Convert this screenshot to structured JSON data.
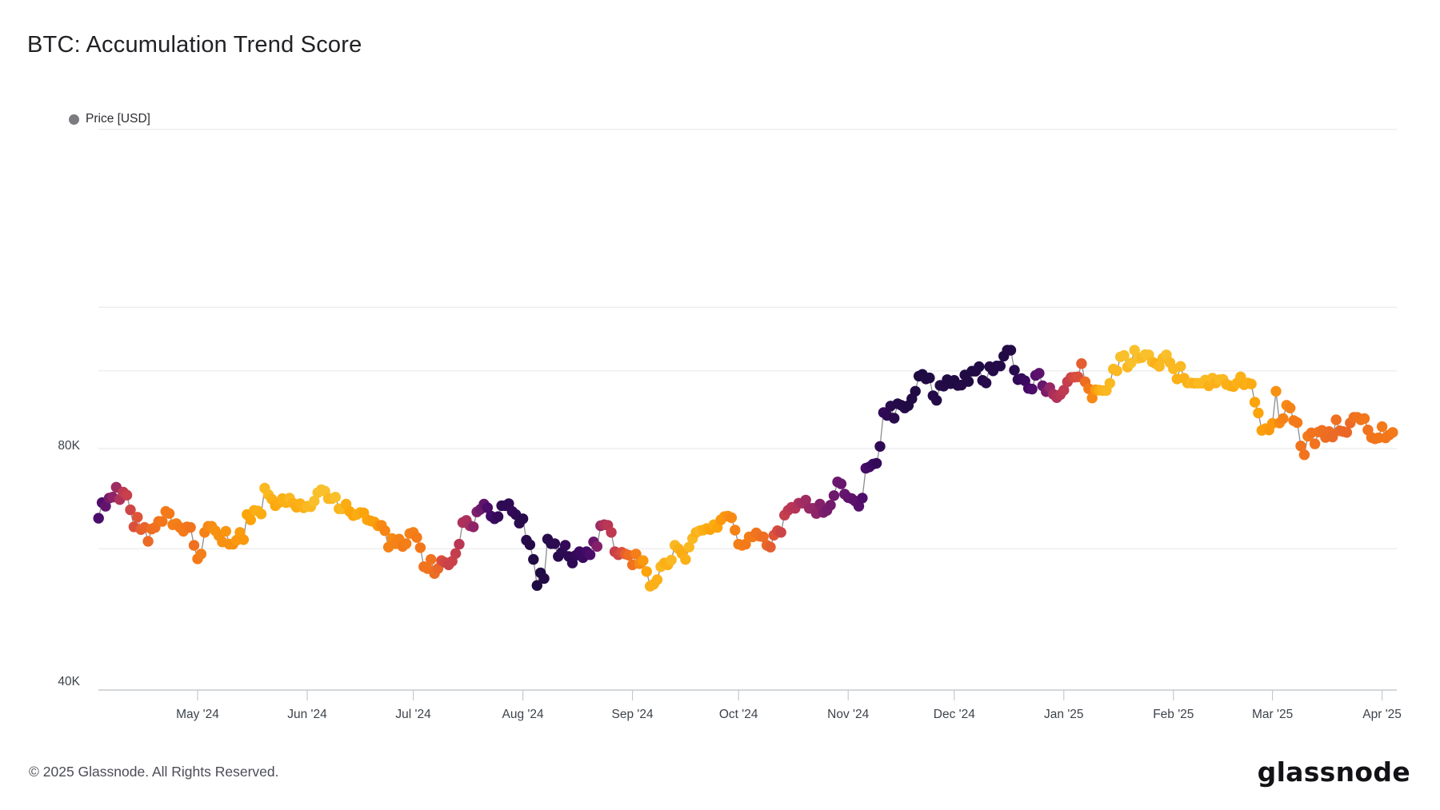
{
  "page": {
    "title": "BTC: Accumulation Trend Score"
  },
  "legend": {
    "items": [
      {
        "label": "Price [USD]",
        "dot_color": "#7b7b80"
      }
    ]
  },
  "footer": {
    "copyright": "© 2025 Glassnode. All Rights Reserved."
  },
  "brand": {
    "logo_text": "glassnode"
  },
  "colors": {
    "grid": "#ededee",
    "axis_line": "#c6cacd",
    "tick_mark": "#c6cacd",
    "x_tick_label": "#3d434b",
    "y_tick_label": "#3d434b",
    "connector_line": "#8d8d92",
    "title": "#222226",
    "footer_text": "#4b4b55",
    "logo_text": "#121217",
    "legend_text": "#2c2c31"
  },
  "chart_data": {
    "type": "scatter",
    "title": "BTC: Accumulation Trend Score",
    "series_name": "Price [USD]",
    "color_encoding": "Accumulation Trend Score per day: ~1 (accumulation) = dark navy/purple, ~0 (distribution) = yellow",
    "colormap": "inferno",
    "colormap_anchors": [
      [
        0.0,
        "#000004"
      ],
      [
        0.1,
        "#160b39"
      ],
      [
        0.2,
        "#420a68"
      ],
      [
        0.3,
        "#6a176e"
      ],
      [
        0.4,
        "#932667"
      ],
      [
        0.5,
        "#bc3754"
      ],
      [
        0.6,
        "#dd513a"
      ],
      [
        0.7,
        "#f3771a"
      ],
      [
        0.8,
        "#fca50a"
      ],
      [
        0.9,
        "#f6d746"
      ],
      [
        1.0,
        "#fcffa4"
      ]
    ],
    "y_scale": "log",
    "y_unit": "USD",
    "y_tick_labels": [
      {
        "label": "80K",
        "value_k": 80
      },
      {
        "label": "40K",
        "value_k": 40
      }
    ],
    "y_gridline_values_k": [
      200,
      120,
      100,
      80,
      60
    ],
    "x_tick_labels": [
      {
        "label": "May '24",
        "day_index": 28
      },
      {
        "label": "Jun '24",
        "day_index": 59
      },
      {
        "label": "Jul '24",
        "day_index": 89
      },
      {
        "label": "Aug '24",
        "day_index": 120
      },
      {
        "label": "Sep '24",
        "day_index": 151
      },
      {
        "label": "Oct '24",
        "day_index": 181
      },
      {
        "label": "Nov '24",
        "day_index": 212
      },
      {
        "label": "Dec '24",
        "day_index": 242
      },
      {
        "label": "Jan '25",
        "day_index": 273
      },
      {
        "label": "Feb '25",
        "day_index": 304
      },
      {
        "label": "Mar '25",
        "day_index": 332
      },
      {
        "label": "Apr '25",
        "day_index": 363
      }
    ],
    "start_date": "2024-04-03",
    "frequency": "daily",
    "price_usd_k": [
      65.5,
      68.5,
      67.8,
      69.4,
      69.6,
      71.6,
      69.1,
      70.6,
      70.0,
      67.1,
      63.9,
      65.7,
      63.4,
      63.8,
      61.3,
      63.5,
      63.8,
      64.9,
      64.9,
      66.8,
      66.4,
      64.3,
      64.5,
      63.8,
      63.1,
      63.9,
      63.8,
      60.6,
      58.3,
      59.1,
      62.9,
      64.0,
      64.0,
      63.2,
      62.3,
      61.2,
      63.1,
      60.8,
      60.8,
      61.5,
      62.9,
      61.6,
      66.2,
      65.2,
      67.0,
      66.9,
      66.3,
      71.4,
      70.1,
      69.2,
      67.9,
      68.5,
      69.3,
      68.5,
      69.4,
      68.4,
      67.6,
      68.3,
      67.5,
      67.8,
      67.7,
      68.8,
      70.5,
      71.1,
      70.8,
      69.3,
      69.3,
      69.6,
      67.3,
      67.3,
      68.2,
      66.8,
      66.0,
      66.2,
      66.6,
      66.5,
      65.2,
      65.0,
      64.8,
      64.1,
      64.2,
      63.2,
      60.3,
      61.8,
      60.9,
      61.7,
      60.4,
      60.9,
      62.7,
      62.9,
      62.0,
      60.2,
      57.0,
      56.7,
      58.2,
      55.9,
      56.7,
      58.0,
      57.7,
      57.3,
      57.9,
      59.2,
      60.8,
      64.7,
      65.1,
      64.1,
      63.9,
      66.7,
      67.2,
      68.2,
      67.5,
      65.9,
      65.4,
      65.8,
      67.9,
      67.9,
      68.3,
      66.8,
      66.2,
      64.6,
      65.4,
      61.5,
      60.7,
      58.2,
      54.0,
      56.0,
      55.1,
      61.7,
      60.9,
      60.9,
      58.7,
      59.4,
      60.6,
      58.7,
      57.6,
      58.9,
      59.5,
      58.5,
      59.5,
      59.0,
      61.2,
      60.4,
      64.1,
      64.3,
      64.2,
      62.9,
      59.5,
      59.0,
      59.4,
      59.1,
      58.9,
      57.3,
      59.1,
      57.5,
      58.0,
      56.2,
      53.9,
      54.2,
      54.9,
      57.0,
      57.6,
      57.3,
      58.1,
      60.6,
      60.0,
      59.2,
      58.2,
      60.3,
      61.8,
      62.9,
      63.2,
      63.3,
      63.6,
      63.4,
      64.3,
      63.8,
      65.2,
      65.8,
      65.9,
      65.6,
      63.3,
      60.8,
      60.6,
      60.8,
      62.1,
      62.1,
      62.8,
      62.2,
      62.1,
      60.6,
      60.3,
      62.4,
      63.2,
      62.9,
      66.1,
      67.0,
      67.6,
      67.4,
      68.4,
      68.4,
      69.0,
      67.4,
      67.4,
      66.4,
      68.2,
      66.6,
      67.0,
      68.0,
      69.9,
      72.7,
      72.3,
      70.2,
      69.5,
      69.3,
      68.8,
      67.8,
      69.4,
      75.6,
      75.9,
      76.5,
      76.7,
      80.5,
      88.7,
      88.0,
      90.4,
      87.3,
      91.0,
      90.6,
      89.9,
      90.5,
      92.3,
      94.3,
      98.5,
      99.0,
      97.7,
      98.0,
      93.1,
      91.9,
      95.9,
      95.7,
      97.5,
      96.4,
      97.3,
      95.9,
      96.0,
      98.8,
      97.0,
      99.9,
      99.9,
      101.2,
      97.3,
      96.6,
      101.2,
      100.0,
      101.4,
      101.4,
      104.3,
      106.1,
      106.1,
      100.2,
      97.5,
      97.8,
      97.2,
      95.1,
      94.9,
      98.7,
      99.3,
      95.8,
      94.2,
      95.3,
      93.5,
      92.6,
      93.4,
      94.6,
      96.9,
      98.1,
      98.2,
      98.3,
      102.1,
      96.9,
      95.0,
      92.5,
      94.7,
      94.6,
      94.5,
      94.5,
      96.5,
      100.5,
      100.0,
      104.1,
      104.5,
      101.1,
      102.3,
      106.1,
      103.7,
      103.9,
      104.8,
      104.7,
      102.6,
      102.1,
      101.3,
      103.7,
      104.7,
      102.4,
      100.6,
      97.7,
      101.3,
      97.9,
      96.6,
      96.6,
      96.5,
      96.5,
      96.5,
      97.4,
      95.8,
      97.9,
      96.6,
      97.5,
      97.6,
      96.2,
      95.8,
      95.6,
      96.6,
      98.3,
      96.1,
      96.6,
      96.3,
      91.4,
      88.6,
      84.3,
      84.7,
      84.4,
      86.0,
      94.3,
      86.1,
      87.2,
      90.6,
      89.9,
      86.7,
      86.2,
      80.6,
      78.6,
      82.9,
      83.7,
      81.1,
      83.9,
      84.3,
      82.6,
      84.0,
      82.7,
      86.9,
      84.2,
      84.0,
      83.8,
      86.1,
      87.5,
      87.5,
      86.9,
      87.2,
      84.4,
      82.6,
      82.3,
      82.5,
      85.2,
      82.5,
      83.2,
      83.8
    ],
    "score": [
      0.85,
      0.83,
      0.78,
      0.72,
      0.65,
      0.6,
      0.55,
      0.5,
      0.47,
      0.44,
      0.4,
      0.38,
      0.35,
      0.33,
      0.31,
      0.3,
      0.29,
      0.28,
      0.27,
      0.26,
      0.26,
      0.25,
      0.25,
      0.26,
      0.26,
      0.27,
      0.28,
      0.29,
      0.26,
      0.25,
      0.24,
      0.22,
      0.21,
      0.2,
      0.2,
      0.2,
      0.19,
      0.2,
      0.2,
      0.18,
      0.17,
      0.18,
      0.15,
      0.15,
      0.13,
      0.12,
      0.13,
      0.1,
      0.1,
      0.12,
      0.14,
      0.13,
      0.12,
      0.12,
      0.1,
      0.12,
      0.13,
      0.12,
      0.12,
      0.1,
      0.1,
      0.08,
      0.08,
      0.08,
      0.08,
      0.1,
      0.1,
      0.08,
      0.11,
      0.1,
      0.13,
      0.14,
      0.15,
      0.13,
      0.13,
      0.15,
      0.15,
      0.16,
      0.16,
      0.18,
      0.22,
      0.23,
      0.24,
      0.22,
      0.24,
      0.24,
      0.26,
      0.25,
      0.24,
      0.25,
      0.26,
      0.27,
      0.28,
      0.28,
      0.28,
      0.3,
      0.32,
      0.4,
      0.44,
      0.46,
      0.46,
      0.48,
      0.52,
      0.55,
      0.56,
      0.58,
      0.65,
      0.7,
      0.74,
      0.78,
      0.85,
      0.88,
      0.9,
      0.92,
      0.92,
      0.93,
      0.93,
      0.92,
      0.93,
      0.94,
      0.95,
      0.95,
      0.96,
      0.97,
      0.98,
      0.97,
      0.96,
      0.95,
      0.95,
      0.94,
      0.95,
      0.94,
      0.92,
      0.93,
      0.93,
      0.92,
      0.9,
      0.9,
      0.88,
      0.85,
      0.75,
      0.68,
      0.6,
      0.55,
      0.52,
      0.5,
      0.47,
      0.44,
      0.4,
      0.34,
      0.3,
      0.28,
      0.25,
      0.22,
      0.18,
      0.15,
      0.12,
      0.12,
      0.12,
      0.1,
      0.12,
      0.12,
      0.1,
      0.1,
      0.12,
      0.13,
      0.12,
      0.1,
      0.1,
      0.12,
      0.1,
      0.12,
      0.13,
      0.15,
      0.13,
      0.15,
      0.18,
      0.18,
      0.2,
      0.22,
      0.24,
      0.25,
      0.25,
      0.26,
      0.25,
      0.26,
      0.28,
      0.28,
      0.3,
      0.32,
      0.35,
      0.38,
      0.42,
      0.45,
      0.48,
      0.5,
      0.52,
      0.53,
      0.55,
      0.58,
      0.6,
      0.62,
      0.63,
      0.65,
      0.68,
      0.7,
      0.72,
      0.73,
      0.74,
      0.75,
      0.76,
      0.77,
      0.78,
      0.79,
      0.8,
      0.82,
      0.84,
      0.86,
      0.88,
      0.9,
      0.92,
      0.93,
      0.92,
      0.93,
      0.95,
      0.95,
      0.96,
      0.96,
      0.96,
      0.97,
      0.97,
      0.97,
      0.98,
      0.98,
      0.97,
      0.97,
      0.96,
      0.96,
      0.96,
      0.96,
      0.97,
      0.97,
      0.97,
      0.97,
      0.96,
      0.97,
      0.97,
      0.97,
      0.97,
      0.97,
      0.96,
      0.95,
      0.96,
      0.96,
      0.96,
      0.96,
      0.97,
      0.97,
      0.96,
      0.95,
      0.93,
      0.92,
      0.9,
      0.88,
      0.85,
      0.82,
      0.8,
      0.77,
      0.7,
      0.63,
      0.57,
      0.54,
      0.52,
      0.5,
      0.48,
      0.45,
      0.42,
      0.4,
      0.35,
      0.3,
      0.26,
      0.22,
      0.17,
      0.13,
      0.11,
      0.1,
      0.1,
      0.1,
      0.1,
      0.08,
      0.08,
      0.1,
      0.08,
      0.08,
      0.08,
      0.1,
      0.08,
      0.08,
      0.1,
      0.12,
      0.1,
      0.1,
      0.08,
      0.1,
      0.1,
      0.12,
      0.1,
      0.12,
      0.12,
      0.1,
      0.12,
      0.1,
      0.1,
      0.1,
      0.12,
      0.1,
      0.12,
      0.1,
      0.1,
      0.12,
      0.12,
      0.13,
      0.12,
      0.12,
      0.13,
      0.12,
      0.13,
      0.15,
      0.15,
      0.16,
      0.16,
      0.18,
      0.18,
      0.2,
      0.22,
      0.24,
      0.22,
      0.24,
      0.26,
      0.26,
      0.28,
      0.28,
      0.26,
      0.28,
      0.28,
      0.28,
      0.29,
      0.3,
      0.3,
      0.31,
      0.29,
      0.31,
      0.32,
      0.32,
      0.31,
      0.29,
      0.28,
      0.28,
      0.27,
      0.28,
      0.27,
      0.28,
      0.27,
      0.26,
      0.27,
      0.27,
      0.26
    ]
  }
}
